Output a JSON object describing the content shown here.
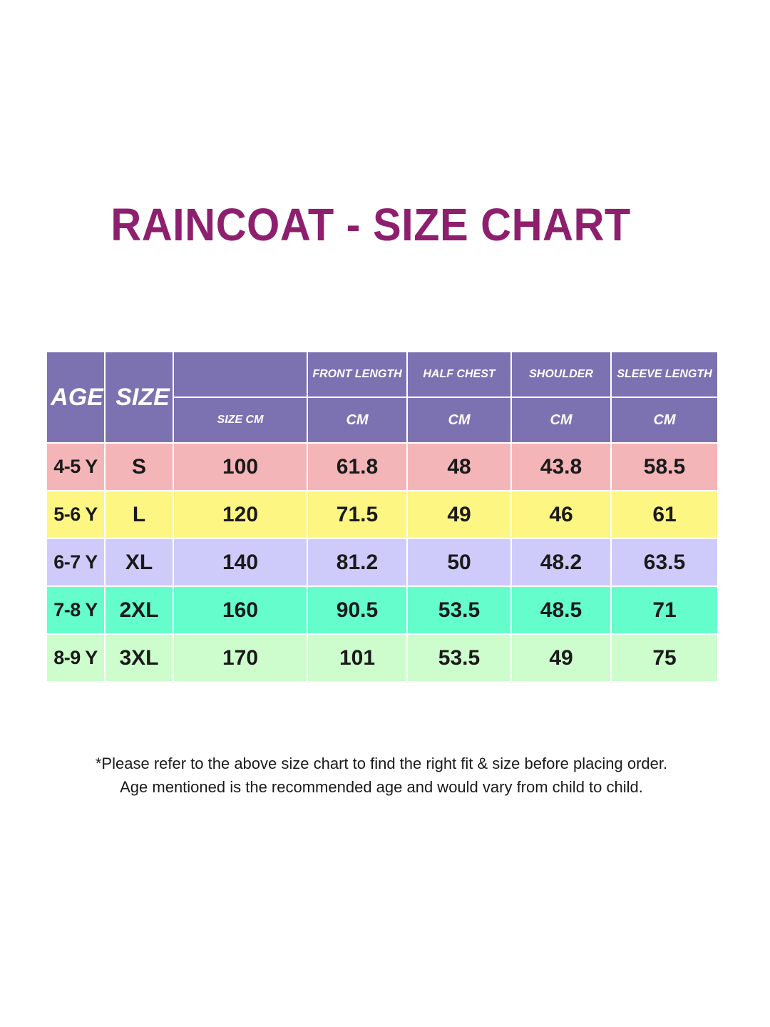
{
  "title": "RAINCOAT - SIZE CHART",
  "table": {
    "headers": {
      "age": "AGE",
      "size": "SIZE",
      "size_cm": "SIZE CM",
      "front_length": "FRONT LENGTH",
      "half_chest": "HALF CHEST",
      "shoulder": "SHOULDER",
      "sleeve_length": "SLEEVE LENGTH",
      "unit": "CM"
    },
    "header_color": "#7d72b1",
    "rows": [
      {
        "age": "4-5 Y",
        "size": "S",
        "size_cm": "100",
        "front_length": "61.8",
        "half_chest": "48",
        "shoulder": "43.8",
        "sleeve_length": "58.5",
        "color": "#f4b5b8"
      },
      {
        "age": "5-6 Y",
        "size": "L",
        "size_cm": "120",
        "front_length": "71.5",
        "half_chest": "49",
        "shoulder": "46",
        "sleeve_length": "61",
        "color": "#fdf683"
      },
      {
        "age": "6-7 Y",
        "size": "XL",
        "size_cm": "140",
        "front_length": "81.2",
        "half_chest": "50",
        "shoulder": "48.2",
        "sleeve_length": "63.5",
        "color": "#cecbfb"
      },
      {
        "age": "7-8 Y",
        "size": "2XL",
        "size_cm": "160",
        "front_length": "90.5",
        "half_chest": "53.5",
        "shoulder": "48.5",
        "sleeve_length": "71",
        "color": "#65fdcb"
      },
      {
        "age": "8-9 Y",
        "size": "3XL",
        "size_cm": "170",
        "front_length": "101",
        "half_chest": "53.5",
        "shoulder": "49",
        "sleeve_length": "75",
        "color": "#cdfdcc"
      }
    ]
  },
  "notes": [
    "*Please refer to the above size chart to find the right fit & size before placing order.",
    "Age mentioned is the recommended age and would vary from child to child."
  ]
}
